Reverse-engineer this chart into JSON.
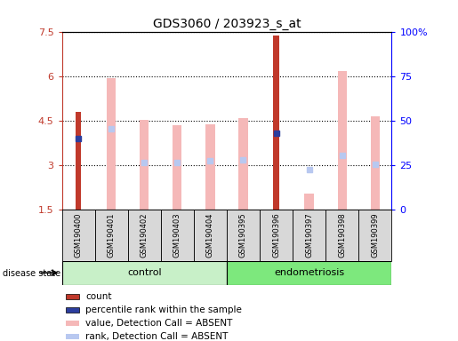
{
  "title": "GDS3060 / 203923_s_at",
  "samples": [
    "GSM190400",
    "GSM190401",
    "GSM190402",
    "GSM190403",
    "GSM190404",
    "GSM190395",
    "GSM190396",
    "GSM190397",
    "GSM190398",
    "GSM190399"
  ],
  "groups": [
    "control",
    "control",
    "control",
    "control",
    "control",
    "endometriosis",
    "endometriosis",
    "endometriosis",
    "endometriosis",
    "endometriosis"
  ],
  "count_values": [
    4.8,
    null,
    null,
    null,
    null,
    null,
    7.4,
    null,
    null,
    null
  ],
  "count_percentile": [
    40,
    null,
    null,
    null,
    null,
    null,
    43,
    null,
    null,
    null
  ],
  "absent_value_top": [
    null,
    5.95,
    4.55,
    4.35,
    4.4,
    4.6,
    null,
    2.05,
    6.2,
    4.65
  ],
  "absent_value_bottom": [
    null,
    1.5,
    1.5,
    1.5,
    1.5,
    1.5,
    null,
    1.5,
    1.5,
    1.5
  ],
  "absent_rank_value": [
    null,
    4.25,
    3.1,
    3.1,
    3.15,
    3.2,
    null,
    2.87,
    3.35,
    3.05
  ],
  "ylim_left": [
    1.5,
    7.5
  ],
  "ylim_right": [
    0,
    100
  ],
  "yticks_left": [
    1.5,
    3.0,
    4.5,
    6.0,
    7.5
  ],
  "yticks_right": [
    0,
    25,
    50,
    75,
    100
  ],
  "ytick_labels_left": [
    "1.5",
    "3",
    "4.5",
    "6",
    "7.5"
  ],
  "ytick_labels_right": [
    "0",
    "25",
    "50",
    "75",
    "100%"
  ],
  "color_count": "#c0392b",
  "color_percentile": "#2c3e9e",
  "color_absent_value": "#f5b8b8",
  "color_absent_rank": "#b8c8f0",
  "color_control_bg": "#c8f0c8",
  "color_endo_bg": "#7de87d",
  "color_sample_bg": "#d8d8d8",
  "legend_items": [
    {
      "color": "#c0392b",
      "label": "count"
    },
    {
      "color": "#2c3e9e",
      "label": "percentile rank within the sample"
    },
    {
      "color": "#f5b8b8",
      "label": "value, Detection Call = ABSENT"
    },
    {
      "color": "#b8c8f0",
      "label": "rank, Detection Call = ABSENT"
    }
  ]
}
